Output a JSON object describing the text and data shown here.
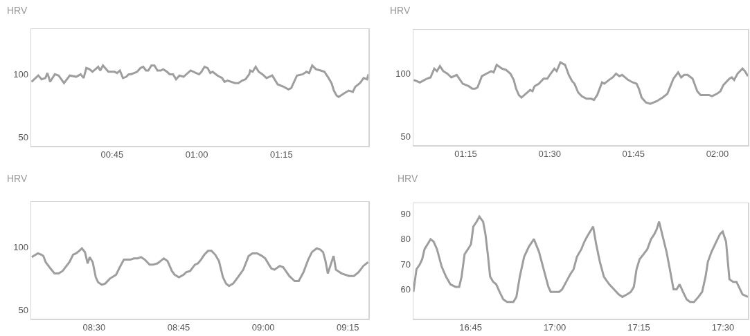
{
  "chart_data": [
    {
      "type": "line",
      "title": "HRV",
      "color": "#9e9e9e",
      "xlim": [
        0.511,
        1.507
      ],
      "xticks": [
        {
          "value": 0.75,
          "label": "00:45"
        },
        {
          "value": 1,
          "label": "01:00"
        },
        {
          "value": 1.25,
          "label": "01:15"
        }
      ],
      "ylim": [
        43,
        136
      ],
      "yticks": [
        50,
        100
      ],
      "x": [
        0.512,
        0.532,
        0.542,
        0.553,
        0.559,
        0.567,
        0.581,
        0.592,
        0.608,
        0.625,
        0.644,
        0.657,
        0.666,
        0.674,
        0.683,
        0.692,
        0.709,
        0.715,
        0.723,
        0.739,
        0.757,
        0.765,
        0.773,
        0.782,
        0.792,
        0.799,
        0.806,
        0.824,
        0.834,
        0.842,
        0.85,
        0.857,
        0.866,
        0.875,
        0.884,
        0.894,
        0.901,
        0.912,
        0.92,
        0.93,
        0.939,
        0.949,
        0.961,
        0.982,
        0.998,
        1.007,
        1.014,
        1.023,
        1.032,
        1.04,
        1.047,
        1.061,
        1.075,
        1.082,
        1.091,
        1.113,
        1.123,
        1.134,
        1.144,
        1.155,
        1.158,
        1.165,
        1.174,
        1.183,
        1.194,
        1.206,
        1.223,
        1.239,
        1.257,
        1.271,
        1.279,
        1.296,
        1.313,
        1.324,
        1.332,
        1.341,
        1.352,
        1.366,
        1.377,
        1.387,
        1.398,
        1.405,
        1.413,
        1.419,
        1.436,
        1.449,
        1.461,
        1.468,
        1.482,
        1.493,
        1.503,
        1.507
      ],
      "values": [
        94,
        99,
        96,
        97,
        101,
        94,
        100,
        99,
        93,
        99,
        98,
        100,
        97,
        105,
        104,
        102,
        106,
        103,
        107,
        102,
        102,
        101,
        103,
        97,
        98,
        100,
        100,
        102,
        105,
        106,
        103,
        103,
        107,
        107,
        103,
        103,
        104,
        102,
        100,
        100,
        96,
        99,
        98,
        103,
        101,
        100,
        102,
        106,
        105,
        101,
        102,
        99,
        97,
        94,
        95,
        93,
        93,
        95,
        96,
        100,
        103,
        102,
        106,
        102,
        100,
        97,
        99,
        92,
        90,
        88,
        89,
        99,
        100,
        102,
        101,
        107,
        104,
        103,
        102,
        98,
        93,
        87,
        83,
        82,
        85,
        87,
        86,
        90,
        93,
        97,
        96,
        100
      ]
    },
    {
      "type": "line",
      "title": "HRV",
      "color": "#9e9e9e",
      "xlim": [
        1.094,
        2.091
      ],
      "xticks": [
        {
          "value": 1.25,
          "label": "01:15"
        },
        {
          "value": 1.5,
          "label": "01:30"
        },
        {
          "value": 1.75,
          "label": "01:45"
        },
        {
          "value": 2,
          "label": "02:00"
        }
      ],
      "ylim": [
        43,
        135
      ],
      "yticks": [
        50,
        100
      ],
      "x": [
        1.095,
        1.113,
        1.127,
        1.134,
        1.145,
        1.156,
        1.164,
        1.173,
        1.183,
        1.195,
        1.207,
        1.223,
        1.241,
        1.259,
        1.269,
        1.278,
        1.285,
        1.298,
        1.312,
        1.326,
        1.333,
        1.342,
        1.358,
        1.37,
        1.383,
        1.393,
        1.4,
        1.408,
        1.416,
        1.429,
        1.442,
        1.449,
        1.455,
        1.468,
        1.482,
        1.493,
        1.503,
        1.514,
        1.521,
        1.532,
        1.546,
        1.557,
        1.567,
        1.574,
        1.585,
        1.596,
        1.61,
        1.624,
        1.632,
        1.642,
        1.656,
        1.663,
        1.677,
        1.688,
        1.698,
        1.708,
        1.716,
        1.734,
        1.748,
        1.759,
        1.766,
        1.774,
        1.787,
        1.8,
        1.819,
        1.837,
        1.851,
        1.869,
        1.883,
        1.892,
        1.901,
        1.911,
        1.926,
        1.94,
        1.95,
        1.965,
        1.975,
        1.984,
        1.999,
        2.009,
        2.018,
        2.036,
        2.043,
        2.05,
        2.06,
        2.075,
        2.082,
        2.091
      ],
      "values": [
        95,
        93,
        95,
        96,
        97,
        104,
        102,
        106,
        102,
        100,
        97,
        99,
        92,
        90,
        88,
        88,
        89,
        98,
        100,
        102,
        101,
        107,
        104,
        103,
        100,
        95,
        88,
        83,
        81,
        84,
        87,
        86,
        90,
        92,
        96,
        96,
        100,
        104,
        102,
        109,
        107,
        99,
        94,
        92,
        85,
        82,
        80,
        80,
        79,
        83,
        93,
        92,
        95,
        97,
        100,
        98,
        99,
        95,
        93,
        92,
        88,
        81,
        77,
        76,
        78,
        81,
        84,
        96,
        101,
        97,
        99,
        99,
        96,
        86,
        83,
        83,
        83,
        82,
        84,
        86,
        91,
        96,
        97,
        95,
        100,
        104,
        102,
        98
      ]
    },
    {
      "type": "line",
      "title": "HRV",
      "color": "#9e9e9e",
      "xlim": [
        8.314,
        9.311
      ],
      "xticks": [
        {
          "value": 8.5,
          "label": "08:30"
        },
        {
          "value": 8.75,
          "label": "08:45"
        },
        {
          "value": 9,
          "label": "09:00"
        },
        {
          "value": 9.25,
          "label": "09:15"
        }
      ],
      "ylim": [
        43,
        136
      ],
      "yticks": [
        50,
        100
      ],
      "x": [
        8.316,
        8.321,
        8.334,
        8.344,
        8.35,
        8.357,
        8.371,
        8.383,
        8.395,
        8.407,
        8.427,
        8.438,
        8.447,
        8.456,
        8.464,
        8.473,
        8.481,
        8.487,
        8.496,
        8.505,
        8.512,
        8.523,
        8.533,
        8.547,
        8.565,
        8.576,
        8.588,
        8.597,
        8.607,
        8.618,
        8.629,
        8.639,
        8.65,
        8.664,
        8.674,
        8.687,
        8.697,
        8.706,
        8.717,
        8.73,
        8.738,
        8.751,
        8.765,
        8.772,
        8.784,
        8.798,
        8.807,
        8.816,
        8.826,
        8.837,
        8.847,
        8.858,
        8.869,
        8.881,
        8.89,
        8.899,
        8.911,
        8.925,
        8.941,
        8.957,
        8.968,
        8.982,
        8.996,
        9.006,
        9.017,
        9.024,
        9.033,
        9.049,
        9.059,
        9.077,
        9.093,
        9.105,
        9.119,
        9.133,
        9.144,
        9.158,
        9.169,
        9.177,
        9.184,
        9.191,
        9.208,
        9.215,
        9.232,
        9.254,
        9.268,
        9.282,
        9.296,
        9.31
      ],
      "values": [
        92,
        93,
        95,
        94,
        93,
        88,
        83,
        79,
        79,
        81,
        88,
        94,
        95,
        97,
        99,
        96,
        87,
        92,
        88,
        76,
        72,
        70,
        71,
        75,
        78,
        84,
        90,
        90,
        90,
        91,
        91,
        92,
        90,
        86,
        86,
        87,
        89,
        91,
        89,
        81,
        78,
        76,
        78,
        80,
        81,
        86,
        87,
        90,
        94,
        97,
        97,
        94,
        89,
        76,
        71,
        69,
        71,
        76,
        82,
        93,
        95,
        95,
        93,
        91,
        86,
        83,
        82,
        85,
        84,
        77,
        73,
        73,
        80,
        90,
        96,
        99,
        98,
        96,
        89,
        79,
        93,
        82,
        79,
        77,
        77,
        80,
        85,
        88
      ]
    },
    {
      "type": "line",
      "title": "HRV",
      "color": "#9e9e9e",
      "xlim": [
        16.58,
        17.574
      ],
      "xticks": [
        {
          "value": 16.75,
          "label": "16:45"
        },
        {
          "value": 17,
          "label": "17:00"
        },
        {
          "value": 17.25,
          "label": "17:15"
        },
        {
          "value": 17.5,
          "label": "17:30"
        }
      ],
      "ylim": [
        48.3,
        94.3
      ],
      "yticks": [
        60,
        70,
        80,
        90
      ],
      "x": [
        16.58,
        16.589,
        16.599,
        16.606,
        16.613,
        16.622,
        16.631,
        16.64,
        16.65,
        16.664,
        16.677,
        16.69,
        16.705,
        16.716,
        16.723,
        16.732,
        16.742,
        16.751,
        16.758,
        16.768,
        16.776,
        16.787,
        16.794,
        16.801,
        16.808,
        16.817,
        16.826,
        16.836,
        16.847,
        16.858,
        16.868,
        16.877,
        16.886,
        16.896,
        16.909,
        16.923,
        16.938,
        16.953,
        16.969,
        16.981,
        16.988,
        17.003,
        17.013,
        17.022,
        17.034,
        17.046,
        17.056,
        17.066,
        17.079,
        17.088,
        17.096,
        17.105,
        17.114,
        17.123,
        17.134,
        17.146,
        17.162,
        17.176,
        17.19,
        17.201,
        17.215,
        17.226,
        17.235,
        17.243,
        17.252,
        17.264,
        17.275,
        17.286,
        17.296,
        17.303,
        17.31,
        17.321,
        17.332,
        17.342,
        17.353,
        17.362,
        17.371,
        17.381,
        17.392,
        17.402,
        17.414,
        17.427,
        17.438,
        17.448,
        17.455,
        17.466,
        17.48,
        17.491,
        17.499,
        17.509,
        17.519,
        17.53,
        17.54,
        17.558,
        17.574
      ],
      "values": [
        59,
        68,
        70,
        72,
        76,
        78,
        80,
        79,
        76,
        69,
        65,
        62,
        61,
        61,
        65,
        74,
        76,
        78,
        85,
        87,
        89,
        87,
        82,
        74,
        65,
        63,
        62,
        59,
        56,
        55,
        55,
        55,
        57,
        65,
        73,
        77,
        80,
        75,
        67,
        61,
        59,
        59,
        59,
        60,
        63,
        66,
        68,
        73,
        76,
        79,
        81,
        83,
        85,
        78,
        71,
        65,
        62,
        60,
        58,
        57,
        58,
        59,
        61,
        68,
        72,
        74,
        76,
        80,
        82,
        84,
        87,
        81,
        75,
        68,
        60,
        60,
        62,
        59,
        56,
        55,
        55,
        57,
        59,
        65,
        71,
        75,
        79,
        82,
        83,
        79,
        64,
        63,
        63,
        58,
        57
      ]
    }
  ]
}
